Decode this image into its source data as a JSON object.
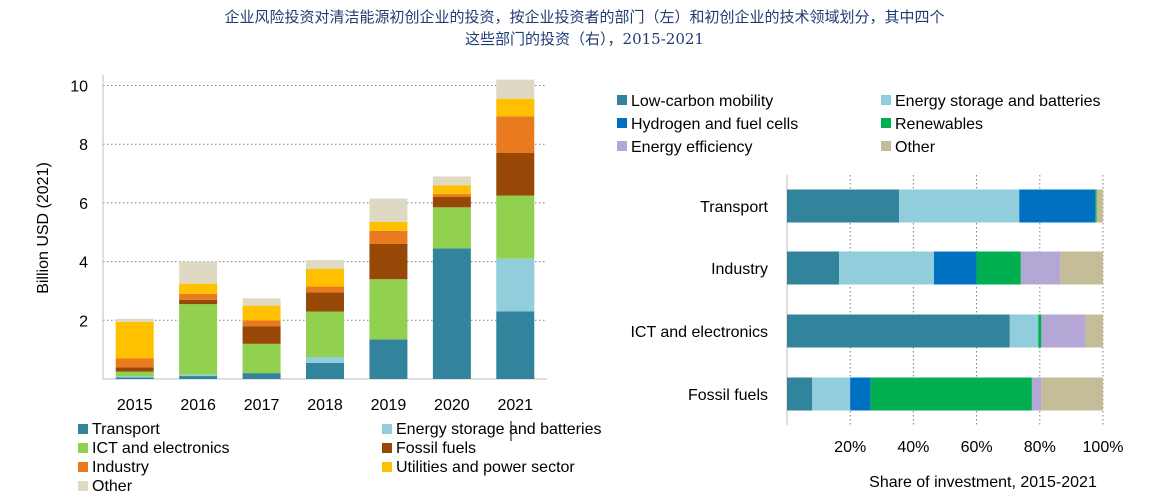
{
  "title": {
    "line1": "企业风险投资对清洁能源初创企业的投资，按企业投资者的部门（左）和初创企业的技术领域划分，其中四个",
    "line2": "这些部门的投资（右），2015-2021"
  },
  "colors": {
    "Transport": "#31849b",
    "Energy storage and batteries": "#92cddc",
    "ICT and electronics": "#92d050",
    "Fossil fuels": "#974706",
    "Industry": "#e97b1e",
    "Utilities and power sector": "#ffc000",
    "Other": "#ddd9c3",
    "Low-carbon mobility": "#31849b",
    "Hydrogen and fuel cells": "#0070c0",
    "Renewables": "#00b050",
    "Energy efficiency": "#b4a7d6",
    "Other (right)": "#c4bd97"
  },
  "chart_data": [
    {
      "type": "bar",
      "stacked": true,
      "ylabel": "Billion USD (2021)",
      "ylim": [
        0,
        10.5
      ],
      "yticks": [
        2,
        4,
        6,
        8,
        10
      ],
      "grid": true,
      "categories": [
        "2015",
        "2016",
        "2017",
        "2018",
        "2019",
        "2020",
        "2021"
      ],
      "series": [
        {
          "name": "Transport",
          "values": [
            0.05,
            0.1,
            0.2,
            0.55,
            1.35,
            4.45,
            2.3
          ]
        },
        {
          "name": "Energy storage and batteries",
          "values": [
            0.05,
            0.05,
            0.0,
            0.2,
            0.0,
            0.0,
            1.8
          ]
        },
        {
          "name": "ICT and electronics",
          "values": [
            0.15,
            2.4,
            1.0,
            1.55,
            2.05,
            1.4,
            2.15
          ]
        },
        {
          "name": "Fossil fuels",
          "values": [
            0.15,
            0.15,
            0.6,
            0.65,
            1.2,
            0.35,
            1.45
          ]
        },
        {
          "name": "Industry",
          "values": [
            0.3,
            0.2,
            0.2,
            0.2,
            0.45,
            0.1,
            1.25
          ]
        },
        {
          "name": "Utilities and power sector",
          "values": [
            1.25,
            0.35,
            0.5,
            0.6,
            0.3,
            0.3,
            0.6
          ]
        },
        {
          "name": "Other",
          "values": [
            0.1,
            0.75,
            0.25,
            0.3,
            0.8,
            0.3,
            0.65
          ]
        }
      ],
      "legend": {
        "position": "bottom",
        "items": [
          "Transport",
          "Energy storage and batteries",
          "ICT and electronics",
          "Fossil fuels",
          "Industry",
          "Utilities and power sector",
          "Other"
        ]
      }
    },
    {
      "type": "bar",
      "orientation": "horizontal",
      "stacked": true,
      "percent": true,
      "xlabel": "Share of investment, 2015-2021",
      "xticks": [
        "20%",
        "40%",
        "60%",
        "80%",
        "100%"
      ],
      "xlim": [
        0,
        100
      ],
      "grid": true,
      "categories": [
        "Transport",
        "Industry",
        "ICT and electronics",
        "Fossil fuels"
      ],
      "series": [
        {
          "name": "Low-carbon mobility",
          "values": [
            35.5,
            16.5,
            70.5,
            8
          ]
        },
        {
          "name": "Energy storage and batteries",
          "values": [
            38,
            30,
            9,
            12
          ]
        },
        {
          "name": "Hydrogen and fuel cells",
          "values": [
            24,
            13.5,
            0,
            6.5
          ]
        },
        {
          "name": "Renewables",
          "values": [
            0.5,
            14,
            1,
            51
          ]
        },
        {
          "name": "Energy efficiency",
          "values": [
            0,
            12.5,
            14,
            3
          ]
        },
        {
          "name": "Other",
          "values": [
            2,
            13.5,
            5.5,
            19.5
          ]
        }
      ],
      "legend": {
        "position": "top",
        "items": [
          "Low-carbon mobility",
          "Energy storage and batteries",
          "Hydrogen and fuel cells",
          "Renewables",
          "Energy efficiency",
          "Other"
        ]
      }
    }
  ]
}
